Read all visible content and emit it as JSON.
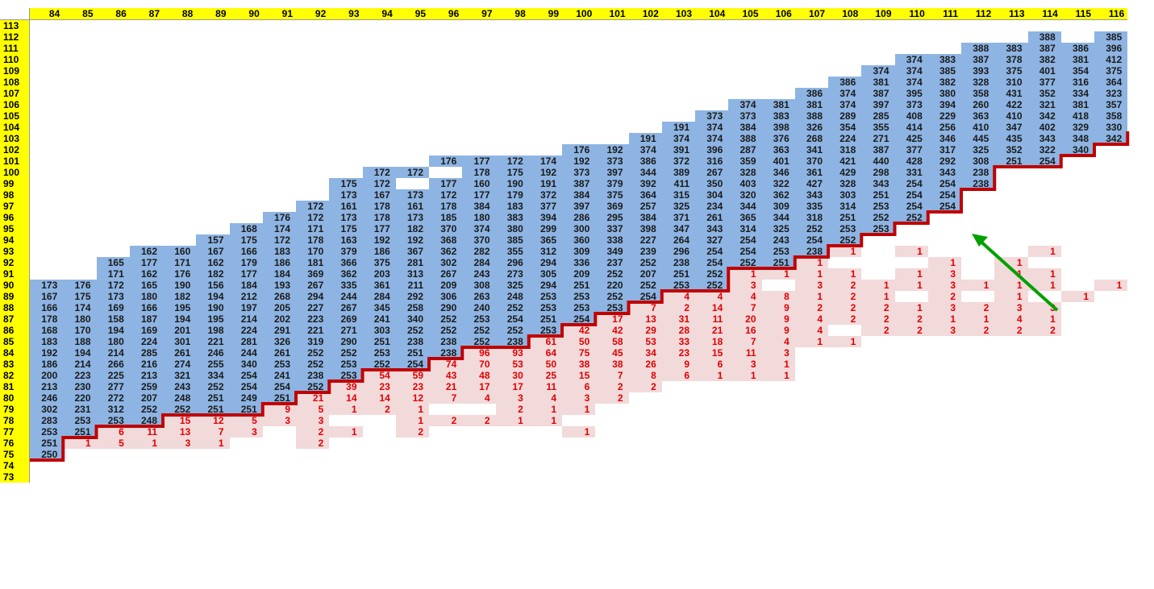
{
  "col_headers": [
    84,
    85,
    86,
    87,
    88,
    89,
    90,
    91,
    92,
    93,
    94,
    95,
    96,
    97,
    98,
    99,
    100,
    101,
    102,
    103,
    104,
    105,
    106,
    107,
    108,
    109,
    110,
    111,
    112,
    113,
    114,
    115,
    116
  ],
  "row_headers": [
    113,
    112,
    111,
    110,
    109,
    108,
    107,
    106,
    105,
    104,
    103,
    102,
    101,
    100,
    99,
    98,
    97,
    96,
    95,
    94,
    93,
    92,
    91,
    90,
    89,
    88,
    87,
    86,
    85,
    84,
    83,
    82,
    81,
    80,
    79,
    78,
    77,
    76,
    75,
    74,
    73
  ],
  "rows": [
    {
      "row": 112,
      "blue": {
        "30": "388",
        "32": "385"
      }
    },
    {
      "row": 111,
      "blue": {
        "28": "388",
        "29": "383",
        "30": "387",
        "31": "386",
        "32": "396"
      }
    },
    {
      "row": 110,
      "blue": {
        "26": "374",
        "27": "383",
        "28": "387",
        "29": "378",
        "30": "382",
        "31": "381",
        "32": "412"
      }
    },
    {
      "row": 109,
      "blue": {
        "25": "374",
        "26": "374",
        "27": "385",
        "28": "393",
        "29": "375",
        "30": "401",
        "31": "354",
        "32": "375"
      }
    },
    {
      "row": 108,
      "blue": {
        "24": "386",
        "25": "381",
        "26": "374",
        "27": "382",
        "28": "328",
        "29": "310",
        "30": "377",
        "31": "316",
        "32": "364"
      }
    },
    {
      "row": 107,
      "blue": {
        "23": "386",
        "24": "374",
        "25": "387",
        "26": "395",
        "27": "380",
        "28": "358",
        "29": "431",
        "30": "352",
        "31": "334",
        "32": "323"
      }
    },
    {
      "row": 106,
      "blue": {
        "21": "374",
        "22": "381",
        "23": "381",
        "24": "374",
        "25": "397",
        "26": "373",
        "27": "394",
        "28": "260",
        "29": "422",
        "30": "321",
        "31": "381",
        "32": "357"
      }
    },
    {
      "row": 105,
      "blue": {
        "20": "373",
        "21": "373",
        "22": "383",
        "23": "388",
        "24": "289",
        "25": "285",
        "26": "408",
        "27": "229",
        "28": "363",
        "29": "410",
        "30": "342",
        "31": "418",
        "32": "358"
      }
    },
    {
      "row": 104,
      "blue": {
        "19": "191",
        "20": "374",
        "21": "384",
        "22": "398",
        "23": "326",
        "24": "354",
        "25": "355",
        "26": "414",
        "27": "256",
        "28": "410",
        "29": "347",
        "30": "402",
        "31": "329",
        "32": "330"
      }
    },
    {
      "row": 103,
      "blue": {
        "18": "191",
        "19": "374",
        "20": "374",
        "21": "388",
        "22": "376",
        "23": "268",
        "24": "224",
        "25": "271",
        "26": "425",
        "27": "346",
        "28": "445",
        "29": "435",
        "30": "343",
        "31": "348",
        "32": "342"
      }
    },
    {
      "row": 102,
      "blue": {
        "16": "176",
        "17": "192",
        "18": "374",
        "19": "391",
        "20": "396",
        "21": "287",
        "22": "363",
        "23": "341",
        "24": "318",
        "25": "387",
        "26": "377",
        "27": "317",
        "28": "325",
        "29": "352",
        "30": "322",
        "31": "340"
      }
    },
    {
      "row": 101,
      "blue": {
        "12": "176",
        "13": "177",
        "14": "172",
        "15": "174",
        "16": "192",
        "17": "373",
        "18": "386",
        "19": "372",
        "20": "316",
        "21": "359",
        "22": "401",
        "23": "370",
        "24": "421",
        "25": "440",
        "26": "428",
        "27": "292",
        "28": "308",
        "29": "251",
        "30": "254"
      }
    },
    {
      "row": 100,
      "blue": {
        "10": "172",
        "11": "172",
        "13": "178",
        "14": "175",
        "15": "192",
        "16": "373",
        "17": "397",
        "18": "344",
        "19": "389",
        "20": "267",
        "21": "328",
        "22": "346",
        "23": "361",
        "24": "429",
        "25": "298",
        "26": "331",
        "27": "343",
        "28": "238"
      }
    },
    {
      "row": 99,
      "blue": {
        "9": "175",
        "10": "172",
        "12": "177",
        "13": "160",
        "14": "190",
        "15": "191",
        "16": "387",
        "17": "379",
        "18": "392",
        "19": "411",
        "20": "350",
        "21": "403",
        "22": "322",
        "23": "427",
        "24": "328",
        "25": "343",
        "26": "254",
        "27": "254",
        "28": "238"
      }
    },
    {
      "row": 98,
      "blue": {
        "9": "173",
        "10": "167",
        "11": "173",
        "12": "172",
        "13": "177",
        "14": "179",
        "15": "372",
        "16": "384",
        "17": "375",
        "18": "364",
        "19": "315",
        "20": "304",
        "21": "320",
        "22": "362",
        "23": "343",
        "24": "303",
        "25": "251",
        "26": "254",
        "27": "254"
      }
    },
    {
      "row": 97,
      "blue": {
        "8": "172",
        "9": "161",
        "10": "178",
        "11": "161",
        "12": "178",
        "13": "384",
        "14": "183",
        "15": "377",
        "16": "397",
        "17": "369",
        "18": "257",
        "19": "325",
        "20": "234",
        "21": "344",
        "22": "309",
        "23": "335",
        "24": "314",
        "25": "253",
        "26": "254",
        "27": "254"
      }
    },
    {
      "row": 96,
      "blue": {
        "7": "176",
        "8": "172",
        "9": "173",
        "10": "178",
        "11": "173",
        "12": "185",
        "13": "180",
        "14": "383",
        "15": "394",
        "16": "286",
        "17": "295",
        "18": "384",
        "19": "371",
        "20": "261",
        "21": "365",
        "22": "344",
        "23": "318",
        "24": "251",
        "25": "252",
        "26": "252"
      }
    },
    {
      "row": 95,
      "blue": {
        "6": "168",
        "7": "174",
        "8": "171",
        "9": "175",
        "10": "177",
        "11": "182",
        "12": "370",
        "13": "374",
        "14": "380",
        "15": "299",
        "16": "300",
        "17": "337",
        "18": "398",
        "19": "347",
        "20": "343",
        "21": "314",
        "22": "325",
        "23": "252",
        "24": "253",
        "25": "253"
      }
    },
    {
      "row": 94,
      "blue": {
        "5": "157",
        "6": "175",
        "7": "172",
        "8": "178",
        "9": "163",
        "10": "192",
        "11": "192",
        "12": "368",
        "13": "370",
        "14": "385",
        "15": "365",
        "16": "360",
        "17": "338",
        "18": "227",
        "19": "264",
        "20": "327",
        "21": "254",
        "22": "243",
        "23": "254",
        "24": "252"
      }
    },
    {
      "row": 93,
      "blue": {
        "3": "162",
        "4": "160",
        "5": "167",
        "6": "166",
        "7": "183",
        "8": "170",
        "9": "379",
        "10": "186",
        "11": "367",
        "12": "362",
        "13": "282",
        "14": "355",
        "15": "312",
        "16": "309",
        "17": "349",
        "18": "239",
        "19": "296",
        "20": "254",
        "21": "254",
        "22": "253",
        "23": "238"
      },
      "pink": {
        "24": "1",
        "26": "1",
        "30": "1"
      }
    },
    {
      "row": 92,
      "blue": {
        "2": "165",
        "3": "177",
        "4": "171",
        "5": "162",
        "6": "179",
        "7": "186",
        "8": "181",
        "9": "366",
        "10": "375",
        "11": "281",
        "12": "302",
        "13": "284",
        "14": "296",
        "15": "294",
        "16": "336",
        "17": "237",
        "18": "252",
        "19": "238",
        "20": "254",
        "21": "252",
        "22": "251"
      },
      "pink": {
        "23": "1",
        "27": "1",
        "29": "1"
      }
    },
    {
      "row": 91,
      "blue": {
        "2": "171",
        "3": "162",
        "4": "176",
        "5": "182",
        "6": "177",
        "7": "184",
        "8": "369",
        "9": "362",
        "10": "203",
        "11": "313",
        "12": "267",
        "13": "243",
        "14": "273",
        "15": "305",
        "16": "209",
        "17": "252",
        "18": "207",
        "19": "251",
        "20": "252"
      },
      "pink": {
        "21": "1",
        "22": "1",
        "23": "1",
        "24": "1",
        "26": "1",
        "27": "3",
        "29": "1",
        "30": "1"
      }
    },
    {
      "row": 90,
      "blue": {
        "0": "173",
        "1": "176",
        "2": "172",
        "3": "165",
        "4": "190",
        "5": "156",
        "6": "184",
        "7": "193",
        "8": "267",
        "9": "335",
        "10": "361",
        "11": "211",
        "12": "209",
        "13": "308",
        "14": "325",
        "15": "294",
        "16": "251",
        "17": "220",
        "18": "252",
        "19": "253",
        "20": "252"
      },
      "pink": {
        "21": "3",
        "23": "3",
        "24": "2",
        "25": "1",
        "26": "1",
        "27": "3",
        "28": "1",
        "29": "1",
        "30": "1",
        "32": "1"
      }
    },
    {
      "row": 89,
      "blue": {
        "0": "167",
        "1": "175",
        "2": "173",
        "3": "180",
        "4": "182",
        "5": "194",
        "6": "212",
        "7": "268",
        "8": "294",
        "9": "244",
        "10": "284",
        "11": "292",
        "12": "306",
        "13": "263",
        "14": "248",
        "15": "253",
        "16": "253",
        "17": "252",
        "18": "254"
      },
      "pink": {
        "19": "4",
        "20": "4",
        "21": "4",
        "22": "8",
        "23": "1",
        "24": "2",
        "25": "1",
        "27": "2",
        "29": "1",
        "31": "1"
      }
    },
    {
      "row": 88,
      "blue": {
        "0": "166",
        "1": "174",
        "2": "169",
        "3": "166",
        "4": "195",
        "5": "190",
        "6": "197",
        "7": "205",
        "8": "227",
        "9": "267",
        "10": "345",
        "11": "258",
        "12": "290",
        "13": "240",
        "14": "252",
        "15": "253",
        "16": "253",
        "17": "253"
      },
      "pink": {
        "18": "7",
        "19": "2",
        "20": "14",
        "21": "7",
        "22": "9",
        "23": "2",
        "24": "2",
        "25": "2",
        "26": "1",
        "27": "3",
        "28": "2",
        "29": "3",
        "30": "3"
      }
    },
    {
      "row": 87,
      "blue": {
        "0": "178",
        "1": "180",
        "2": "158",
        "3": "187",
        "4": "194",
        "5": "195",
        "6": "214",
        "7": "202",
        "8": "223",
        "9": "269",
        "10": "241",
        "11": "340",
        "12": "252",
        "13": "253",
        "14": "254",
        "15": "251",
        "16": "254"
      },
      "pink": {
        "17": "17",
        "18": "13",
        "19": "31",
        "20": "11",
        "21": "20",
        "22": "9",
        "23": "4",
        "24": "2",
        "25": "2",
        "26": "2",
        "27": "1",
        "28": "1",
        "29": "4",
        "30": "1"
      }
    },
    {
      "row": 86,
      "blue": {
        "0": "168",
        "1": "170",
        "2": "194",
        "3": "169",
        "4": "201",
        "5": "198",
        "6": "224",
        "7": "291",
        "8": "221",
        "9": "271",
        "10": "303",
        "11": "252",
        "12": "252",
        "13": "252",
        "14": "252",
        "15": "253"
      },
      "pink": {
        "16": "42",
        "17": "42",
        "18": "29",
        "19": "28",
        "20": "21",
        "21": "16",
        "22": "9",
        "23": "4",
        "25": "2",
        "26": "2",
        "27": "3",
        "28": "2",
        "29": "2",
        "30": "2"
      }
    },
    {
      "row": 85,
      "blue": {
        "0": "183",
        "1": "188",
        "2": "180",
        "3": "224",
        "4": "301",
        "5": "221",
        "6": "281",
        "7": "326",
        "8": "319",
        "9": "290",
        "10": "251",
        "11": "238",
        "12": "238",
        "13": "252",
        "14": "238"
      },
      "pink": {
        "15": "61",
        "16": "50",
        "17": "58",
        "18": "53",
        "19": "33",
        "20": "18",
        "21": "7",
        "22": "4",
        "23": "1",
        "24": "1"
      }
    },
    {
      "row": 84,
      "blue": {
        "0": "192",
        "1": "194",
        "2": "214",
        "3": "285",
        "4": "261",
        "5": "246",
        "6": "244",
        "7": "261",
        "8": "252",
        "9": "252",
        "10": "253",
        "11": "251",
        "12": "238"
      },
      "pink": {
        "13": "96",
        "14": "93",
        "15": "64",
        "16": "75",
        "17": "45",
        "18": "34",
        "19": "23",
        "20": "15",
        "21": "11",
        "22": "3"
      }
    },
    {
      "row": 83,
      "blue": {
        "0": "186",
        "1": "214",
        "2": "266",
        "3": "216",
        "4": "274",
        "5": "255",
        "6": "340",
        "7": "253",
        "8": "252",
        "9": "253",
        "10": "252",
        "11": "254"
      },
      "pink": {
        "12": "74",
        "13": "70",
        "14": "53",
        "15": "50",
        "16": "38",
        "17": "38",
        "18": "26",
        "19": "9",
        "20": "6",
        "21": "3",
        "22": "1"
      }
    },
    {
      "row": 82,
      "blue": {
        "0": "200",
        "1": "223",
        "2": "225",
        "3": "213",
        "4": "321",
        "5": "334",
        "6": "254",
        "7": "241",
        "8": "238",
        "9": "253"
      },
      "pink": {
        "10": "54",
        "11": "59",
        "12": "43",
        "13": "48",
        "14": "30",
        "15": "25",
        "16": "15",
        "17": "7",
        "18": "8",
        "19": "6",
        "20": "1",
        "21": "1",
        "22": "1"
      }
    },
    {
      "row": 81,
      "blue": {
        "0": "213",
        "1": "230",
        "2": "277",
        "3": "259",
        "4": "243",
        "5": "252",
        "6": "254",
        "7": "254",
        "8": "252"
      },
      "pink": {
        "9": "39",
        "10": "23",
        "11": "23",
        "12": "21",
        "13": "17",
        "14": "17",
        "15": "11",
        "16": "6",
        "17": "2",
        "18": "2"
      }
    },
    {
      "row": 80,
      "blue": {
        "0": "246",
        "1": "220",
        "2": "272",
        "3": "207",
        "4": "248",
        "5": "251",
        "6": "249",
        "7": "251"
      },
      "pink": {
        "8": "21",
        "9": "14",
        "10": "14",
        "11": "12",
        "12": "7",
        "13": "4",
        "14": "3",
        "15": "4",
        "16": "3",
        "17": "2"
      }
    },
    {
      "row": 79,
      "blue": {
        "0": "302",
        "1": "231",
        "2": "312",
        "3": "252",
        "4": "252",
        "5": "251",
        "6": "251"
      },
      "pink": {
        "7": "9",
        "8": "5",
        "9": "1",
        "10": "2",
        "11": "1",
        "14": "2",
        "15": "1",
        "16": "1"
      }
    },
    {
      "row": 78,
      "blue": {
        "0": "283",
        "1": "253",
        "2": "253",
        "3": "248"
      },
      "pink": {
        "4": "15",
        "5": "12",
        "6": "5",
        "7": "3",
        "8": "3",
        "11": "1",
        "12": "2",
        "13": "2",
        "14": "1",
        "15": "1"
      }
    },
    {
      "row": 77,
      "blue": {
        "0": "253",
        "1": "251"
      },
      "pink": {
        "2": "6",
        "3": "11",
        "4": "13",
        "5": "7",
        "6": "3",
        "8": "2",
        "9": "1",
        "11": "2",
        "16": "1"
      }
    },
    {
      "row": 76,
      "blue": {
        "0": "251"
      },
      "pink": {
        "1": "1",
        "2": "5",
        "3": "1",
        "4": "3",
        "5": "1",
        "8": "2"
      }
    },
    {
      "row": 75,
      "blue": {
        "0": "250"
      }
    }
  ],
  "colors": {
    "header_yellow": "#ffff00",
    "blue_cell": "#8db4e2",
    "pink_cell": "#f2d9da",
    "pink_text": "#e00000",
    "boundary_line": "#c00000",
    "arrow": "#00a000"
  }
}
